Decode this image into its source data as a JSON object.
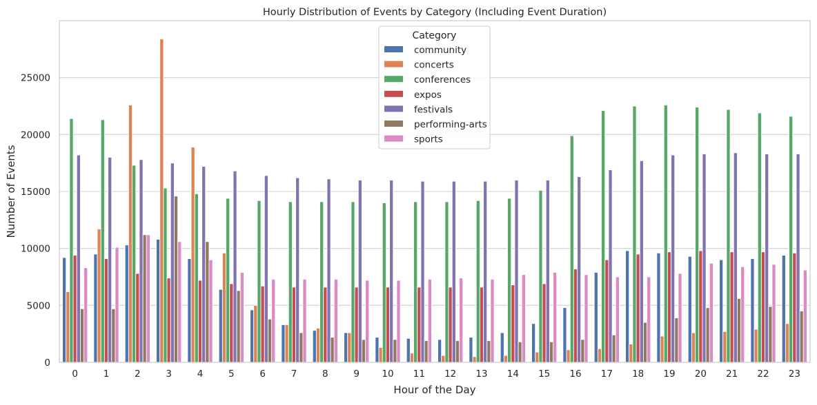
{
  "chart_data": {
    "type": "bar",
    "title": "Hourly Distribution of Events by Category (Including Event Duration)",
    "xlabel": "Hour of the Day",
    "ylabel": "Number of Events",
    "ylim": [
      0,
      30000
    ],
    "yticks": [
      0,
      5000,
      10000,
      15000,
      20000,
      25000
    ],
    "grid": "horizontal",
    "legend": {
      "title": "Category",
      "placement": "top-center"
    },
    "categories": [
      "0",
      "1",
      "2",
      "3",
      "4",
      "5",
      "6",
      "7",
      "8",
      "9",
      "10",
      "11",
      "12",
      "13",
      "14",
      "15",
      "16",
      "17",
      "18",
      "19",
      "20",
      "21",
      "22",
      "23"
    ],
    "series": [
      {
        "name": "community",
        "color": "#4c72b0",
        "values": [
          9200,
          9500,
          10300,
          10800,
          9100,
          6400,
          4600,
          3300,
          2800,
          2600,
          2200,
          2100,
          2000,
          2200,
          2600,
          3400,
          4800,
          7900,
          9800,
          9600,
          9300,
          9000,
          9100,
          9400
        ]
      },
      {
        "name": "concerts",
        "color": "#dd8452",
        "values": [
          6200,
          11700,
          22600,
          28400,
          18900,
          9600,
          5000,
          3300,
          3000,
          2600,
          1300,
          800,
          600,
          500,
          600,
          900,
          1100,
          1200,
          1600,
          2300,
          2600,
          2700,
          2900,
          3400
        ]
      },
      {
        "name": "conferences",
        "color": "#55a868",
        "values": [
          21400,
          21300,
          17300,
          15300,
          14800,
          14400,
          14200,
          14100,
          14100,
          14100,
          14000,
          14100,
          14100,
          14200,
          14400,
          15100,
          19900,
          22100,
          22500,
          22600,
          22400,
          22200,
          21900,
          21600
        ]
      },
      {
        "name": "expos",
        "color": "#c44e52",
        "values": [
          9400,
          9100,
          7800,
          7400,
          7200,
          6900,
          6700,
          6600,
          6600,
          6600,
          6600,
          6600,
          6600,
          6600,
          6800,
          6900,
          8200,
          9000,
          9500,
          9700,
          9800,
          9700,
          9700,
          9600
        ]
      },
      {
        "name": "festivals",
        "color": "#8172b3",
        "values": [
          18200,
          18000,
          17800,
          17500,
          17200,
          16800,
          16400,
          16200,
          16100,
          16000,
          16000,
          15900,
          15900,
          15900,
          16000,
          16000,
          16300,
          16900,
          17700,
          18200,
          18300,
          18400,
          18300,
          18300
        ]
      },
      {
        "name": "performing-arts",
        "color": "#937860",
        "values": [
          4700,
          4700,
          11200,
          14600,
          10600,
          6300,
          3800,
          2600,
          2200,
          2000,
          2000,
          1900,
          1900,
          1900,
          1800,
          1800,
          2000,
          2400,
          3500,
          3900,
          4800,
          5600,
          4900,
          4500
        ]
      },
      {
        "name": "sports",
        "color": "#da8bc3",
        "values": [
          8300,
          10100,
          11200,
          10600,
          9000,
          7900,
          7300,
          7300,
          7300,
          7200,
          7200,
          7300,
          7400,
          7300,
          7700,
          7900,
          7700,
          7500,
          7500,
          7800,
          8700,
          8400,
          8600,
          8100
        ]
      }
    ]
  }
}
